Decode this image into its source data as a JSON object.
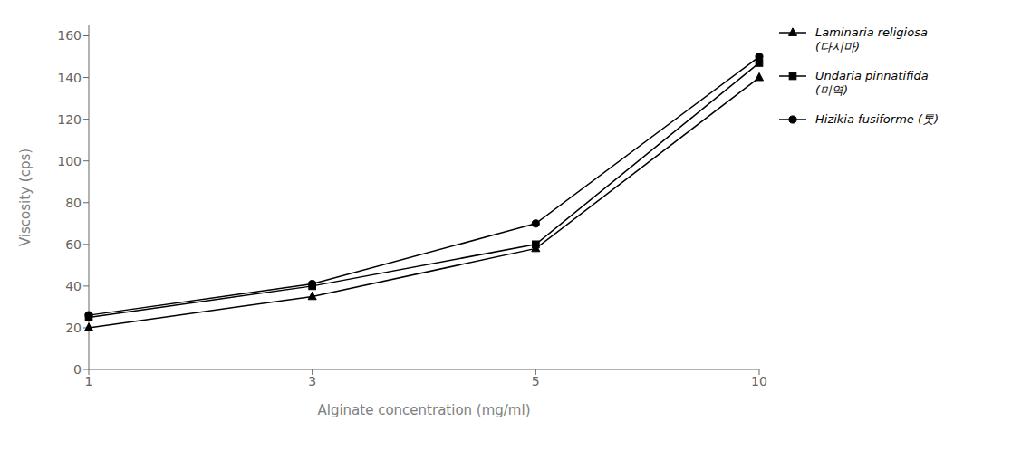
{
  "chart_data": {
    "type": "line",
    "xlabel": "Alginate concentration (mg/ml)",
    "ylabel": "Viscosity (cps)",
    "categories": [
      "1",
      "3",
      "5",
      "10"
    ],
    "series": [
      {
        "name": "Laminaria religiosa\n(다시마)",
        "color": "#000000",
        "marker": "triangle",
        "line_style": "solid",
        "values": [
          20,
          35,
          58,
          140
        ]
      },
      {
        "name": "Undaria pinnatifida\n(미역)",
        "color": "#000000",
        "marker": "square",
        "line_style": "solid",
        "values": [
          25,
          40,
          60,
          147
        ]
      },
      {
        "name": "Hizikia fusiforme (톳)",
        "color": "#000000",
        "marker": "circle",
        "line_style": "solid",
        "values": [
          26,
          41,
          70,
          150
        ]
      }
    ],
    "ylim": [
      0,
      165
    ],
    "yticks": [
      0,
      20,
      40,
      60,
      80,
      100,
      120,
      140,
      160
    ],
    "grid": false,
    "legend": "right"
  }
}
